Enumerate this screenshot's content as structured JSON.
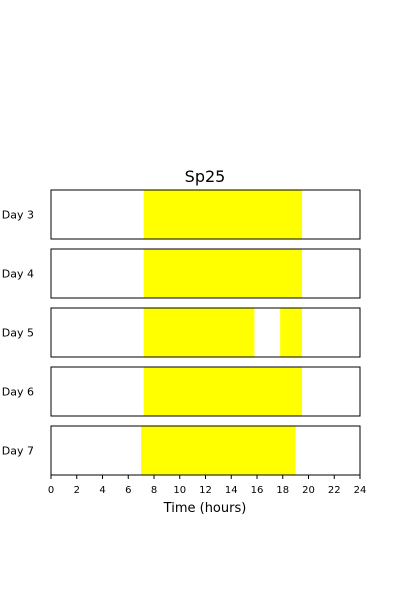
{
  "chart_data": {
    "type": "bar",
    "title": "Sp25",
    "xlabel": "Time (hours)",
    "ylabel": "",
    "xlim": [
      0,
      24
    ],
    "xticks": [
      0,
      2,
      4,
      6,
      8,
      10,
      12,
      14,
      16,
      18,
      20,
      22,
      24
    ],
    "grid": false,
    "colors": {
      "fill": "#ffff00",
      "frame": "#000000",
      "background": "#ffffff"
    },
    "rows": [
      {
        "label": "Day 3",
        "intervals": [
          [
            7.2,
            19.5
          ]
        ]
      },
      {
        "label": "Day 4",
        "intervals": [
          [
            7.2,
            19.5
          ]
        ]
      },
      {
        "label": "Day 5",
        "intervals": [
          [
            7.2,
            15.8
          ],
          [
            17.8,
            19.5
          ]
        ]
      },
      {
        "label": "Day 6",
        "intervals": [
          [
            7.2,
            19.5
          ]
        ]
      },
      {
        "label": "Day 7",
        "intervals": [
          [
            7.0,
            19.0
          ]
        ]
      }
    ]
  }
}
